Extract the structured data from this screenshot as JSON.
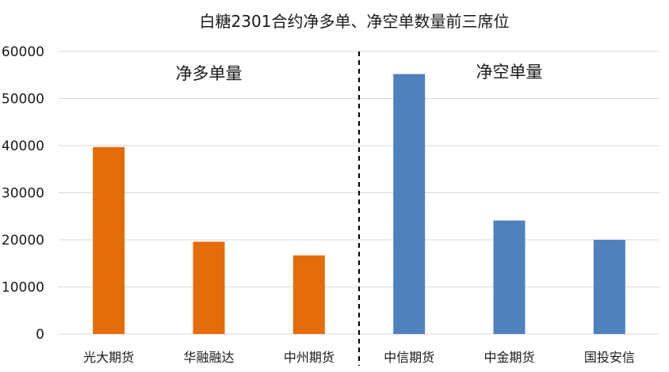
{
  "chart_data": {
    "type": "bar",
    "title": "白糖2301合约净多单、净空单数量前三席位",
    "categories": [
      "光大期货",
      "华融融达",
      "中州期货",
      "中信期货",
      "中金期货",
      "国投安信"
    ],
    "series": [
      {
        "values": [
          39700,
          19600,
          16700,
          null,
          null,
          null
        ],
        "color": "#E46C0A"
      },
      {
        "values": [
          null,
          null,
          null,
          55200,
          24100,
          20000
        ],
        "color": "#4F81BD"
      }
    ],
    "groups": [
      {
        "label": "净多单量",
        "categories": [
          "光大期货",
          "华融融达",
          "中州期货"
        ]
      },
      {
        "label": "净空单量",
        "categories": [
          "中信期货",
          "中金期货",
          "国投安信"
        ]
      }
    ],
    "ylim": [
      0,
      60000
    ],
    "yticks": [
      "0",
      "10000",
      "20000",
      "30000",
      "40000",
      "50000",
      "60000"
    ],
    "grid": true,
    "divider": "dashed line between 中州期货 and 中信期货",
    "legend": "none"
  }
}
